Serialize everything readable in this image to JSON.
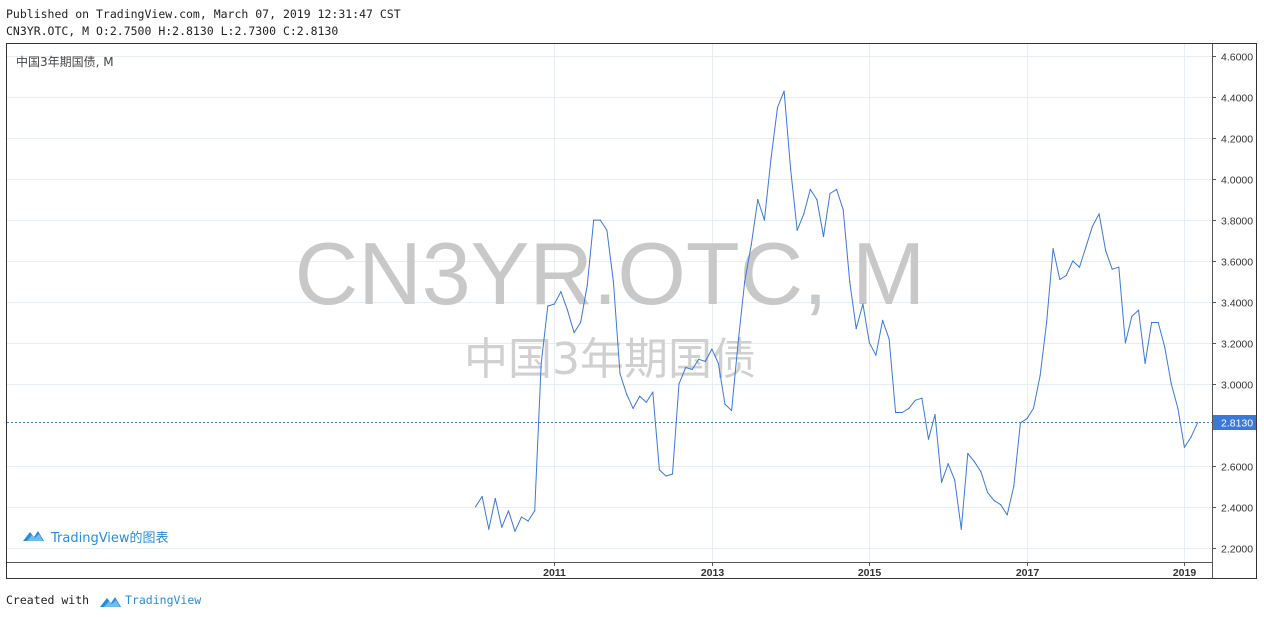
{
  "header": {
    "published": "Published on TradingView.com, March 07, 2019 12:31:47 CST",
    "ohlc": "CN3YR.OTC, M O:2.7500 H:2.8130 L:2.7300 C:2.8130"
  },
  "chart_label": "中国3年期国债, M",
  "watermark": {
    "main": "CN3YR.OTC, M",
    "sub": "中国3年期国债"
  },
  "branding": {
    "chart_logo_text": "TradingView的图表",
    "footer_prefix": "Created with",
    "footer_brand": "TradingView"
  },
  "colors": {
    "line": "#3c78d8",
    "price_label_bg": "#3c78d8",
    "brand": "#2a8bd6",
    "grid": "#e6eef4",
    "watermark": "#c8c8c8"
  },
  "chart_data": {
    "type": "line",
    "series": [
      {
        "name": "CN3YR.OTC",
        "x": [
          2010.0,
          2010.083,
          2010.167,
          2010.25,
          2010.333,
          2010.417,
          2010.5,
          2010.583,
          2010.667,
          2010.75,
          2010.833,
          2010.917,
          2011.0,
          2011.083,
          2011.167,
          2011.25,
          2011.333,
          2011.417,
          2011.5,
          2011.583,
          2011.667,
          2011.75,
          2011.833,
          2011.917,
          2012.0,
          2012.083,
          2012.167,
          2012.25,
          2012.333,
          2012.417,
          2012.5,
          2012.583,
          2012.667,
          2012.75,
          2012.833,
          2012.917,
          2013.0,
          2013.083,
          2013.167,
          2013.25,
          2013.333,
          2013.417,
          2013.5,
          2013.583,
          2013.667,
          2013.75,
          2013.833,
          2013.917,
          2014.0,
          2014.083,
          2014.167,
          2014.25,
          2014.333,
          2014.417,
          2014.5,
          2014.583,
          2014.667,
          2014.75,
          2014.833,
          2014.917,
          2015.0,
          2015.083,
          2015.167,
          2015.25,
          2015.333,
          2015.417,
          2015.5,
          2015.583,
          2015.667,
          2015.75,
          2015.833,
          2015.917,
          2016.0,
          2016.083,
          2016.167,
          2016.25,
          2016.333,
          2016.417,
          2016.5,
          2016.583,
          2016.667,
          2016.75,
          2016.833,
          2016.917,
          2017.0,
          2017.083,
          2017.167,
          2017.25,
          2017.333,
          2017.417,
          2017.5,
          2017.583,
          2017.667,
          2017.75,
          2017.833,
          2017.917,
          2018.0,
          2018.083,
          2018.167,
          2018.25,
          2018.333,
          2018.417,
          2018.5,
          2018.583,
          2018.667,
          2018.75,
          2018.833,
          2018.917,
          2019.0,
          2019.083,
          2019.167
        ],
        "values": [
          2.4,
          2.45,
          2.29,
          2.44,
          2.3,
          2.38,
          2.28,
          2.35,
          2.33,
          2.38,
          3.1,
          3.38,
          3.39,
          3.45,
          3.36,
          3.25,
          3.3,
          3.48,
          3.8,
          3.8,
          3.75,
          3.5,
          3.05,
          2.95,
          2.88,
          2.94,
          2.91,
          2.96,
          2.58,
          2.55,
          2.56,
          3.0,
          3.08,
          3.07,
          3.12,
          3.11,
          3.17,
          3.1,
          2.9,
          2.87,
          3.2,
          3.5,
          3.68,
          3.9,
          3.8,
          4.1,
          4.35,
          4.43,
          4.05,
          3.75,
          3.83,
          3.95,
          3.9,
          3.72,
          3.93,
          3.95,
          3.85,
          3.5,
          3.27,
          3.39,
          3.2,
          3.14,
          3.31,
          3.22,
          2.86,
          2.86,
          2.88,
          2.92,
          2.93,
          2.73,
          2.85,
          2.52,
          2.61,
          2.53,
          2.29,
          2.66,
          2.62,
          2.57,
          2.47,
          2.43,
          2.41,
          2.36,
          2.5,
          2.81,
          2.83,
          2.88,
          3.04,
          3.3,
          3.66,
          3.51,
          3.53,
          3.6,
          3.57,
          3.67,
          3.77,
          3.83,
          3.65,
          3.56,
          3.57,
          3.2,
          3.33,
          3.36,
          3.1,
          3.3,
          3.3,
          3.18,
          3.0,
          2.88,
          2.69,
          2.74,
          2.81
        ]
      }
    ],
    "last_value": 2.813,
    "last_label": "2.8130",
    "xlim": [
      2004.05,
      2019.35
    ],
    "ylim": [
      2.13,
      4.66
    ],
    "x_ticks": [
      {
        "value": 2011,
        "label": "2011"
      },
      {
        "value": 2013,
        "label": "2013"
      },
      {
        "value": 2015,
        "label": "2015"
      },
      {
        "value": 2017,
        "label": "2017"
      },
      {
        "value": 2019,
        "label": "2019"
      }
    ],
    "y_ticks": [
      {
        "value": 2.2,
        "label": "2.2000"
      },
      {
        "value": 2.4,
        "label": "2.4000"
      },
      {
        "value": 2.6,
        "label": "2.6000"
      },
      {
        "value": 3.0,
        "label": "3.0000"
      },
      {
        "value": 3.2,
        "label": "3.2000"
      },
      {
        "value": 3.4,
        "label": "3.4000"
      },
      {
        "value": 3.6,
        "label": "3.6000"
      },
      {
        "value": 3.8,
        "label": "3.8000"
      },
      {
        "value": 4.0,
        "label": "4.0000"
      },
      {
        "value": 4.2,
        "label": "4.2000"
      },
      {
        "value": 4.4,
        "label": "4.4000"
      },
      {
        "value": 4.6,
        "label": "4.6000"
      }
    ],
    "grid": true,
    "legend": "none"
  }
}
